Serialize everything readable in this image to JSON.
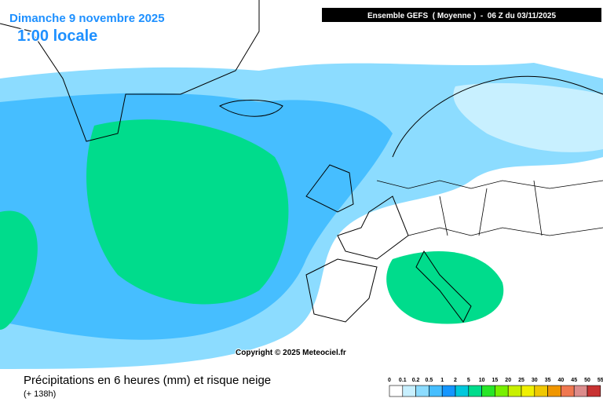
{
  "header": {
    "date": "Dimanche 9 novembre 2025",
    "time": "1:00 locale",
    "model": "Ensemble GEFS  ( Moyenne )  -  06 Z du 03/11/2025"
  },
  "map": {
    "copyright": "Copyright © 2025 Meteociel.fr"
  },
  "footer": {
    "title": "Précipitations en 6 heures (mm) et risque neige",
    "lead": "(+ 138h)"
  },
  "legend": {
    "labels": [
      "0",
      "0.1",
      "0.2",
      "0.5",
      "1",
      "2",
      "5",
      "10",
      "15",
      "20",
      "25",
      "30",
      "35",
      "40",
      "45",
      "50",
      "55"
    ],
    "colors": [
      "#ffffff",
      "#c8f0ff",
      "#8cdcff",
      "#46beff",
      "#1496ff",
      "#00c8dc",
      "#00dc8c",
      "#28e628",
      "#78f000",
      "#c8f000",
      "#f0f000",
      "#f0c800",
      "#f09600",
      "#f07850",
      "#dc8c8c",
      "#c83232"
    ]
  }
}
